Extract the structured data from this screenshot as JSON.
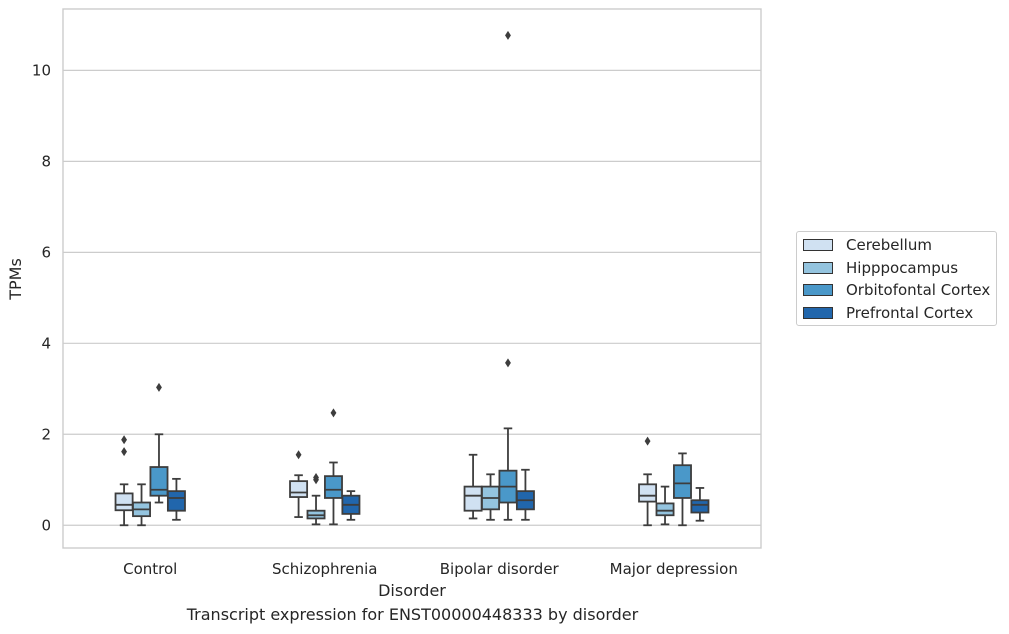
{
  "chart_data": {
    "type": "box",
    "ylabel": "TPMs",
    "xlabel": "Disorder",
    "caption": "Transcript expression for ENST00000448333 by disorder",
    "ylim": [
      -0.5,
      11.35
    ],
    "yticks": [
      0,
      2,
      4,
      6,
      8,
      10
    ],
    "grid": "horizontal",
    "legend_position": "right",
    "categories": [
      "Control",
      "Schizophrenia",
      "Bipolar disorder",
      "Major depression"
    ],
    "series": [
      {
        "name": "Cerebellum",
        "color": "#d0e1f2",
        "boxes": [
          {
            "whislo": 0.0,
            "q1": 0.33,
            "median": 0.45,
            "q3": 0.7,
            "whishi": 0.9,
            "fliers": [
              1.62,
              1.88
            ]
          },
          {
            "whislo": 0.18,
            "q1": 0.62,
            "median": 0.72,
            "q3": 0.97,
            "whishi": 1.1,
            "fliers": [
              1.55
            ]
          },
          {
            "whislo": 0.15,
            "q1": 0.32,
            "median": 0.65,
            "q3": 0.85,
            "whishi": 1.55,
            "fliers": []
          },
          {
            "whislo": 0.0,
            "q1": 0.52,
            "median": 0.65,
            "q3": 0.9,
            "whishi": 1.12,
            "fliers": [
              1.85
            ]
          }
        ]
      },
      {
        "name": "Hipppocampus",
        "color": "#94c4df",
        "boxes": [
          {
            "whislo": 0.0,
            "q1": 0.2,
            "median": 0.35,
            "q3": 0.5,
            "whishi": 0.9,
            "fliers": []
          },
          {
            "whislo": 0.02,
            "q1": 0.15,
            "median": 0.22,
            "q3": 0.32,
            "whishi": 0.65,
            "fliers": [
              1.0,
              1.05
            ]
          },
          {
            "whislo": 0.12,
            "q1": 0.35,
            "median": 0.6,
            "q3": 0.85,
            "whishi": 1.12,
            "fliers": []
          },
          {
            "whislo": 0.02,
            "q1": 0.22,
            "median": 0.32,
            "q3": 0.48,
            "whishi": 0.85,
            "fliers": []
          }
        ]
      },
      {
        "name": "Orbitofontal Cortex",
        "color": "#4a98c9",
        "boxes": [
          {
            "whislo": 0.5,
            "q1": 0.65,
            "median": 0.78,
            "q3": 1.28,
            "whishi": 2.0,
            "fliers": [
              3.03
            ]
          },
          {
            "whislo": 0.02,
            "q1": 0.6,
            "median": 0.78,
            "q3": 1.08,
            "whishi": 1.38,
            "fliers": [
              2.47
            ]
          },
          {
            "whislo": 0.12,
            "q1": 0.5,
            "median": 0.85,
            "q3": 1.2,
            "whishi": 2.13,
            "fliers": [
              3.57,
              10.77
            ]
          },
          {
            "whislo": 0.0,
            "q1": 0.6,
            "median": 0.92,
            "q3": 1.32,
            "whishi": 1.58,
            "fliers": []
          }
        ]
      },
      {
        "name": "Prefrontal Cortex",
        "color": "#2166ac",
        "boxes": [
          {
            "whislo": 0.12,
            "q1": 0.32,
            "median": 0.6,
            "q3": 0.75,
            "whishi": 1.02,
            "fliers": []
          },
          {
            "whislo": 0.12,
            "q1": 0.25,
            "median": 0.45,
            "q3": 0.65,
            "whishi": 0.75,
            "fliers": []
          },
          {
            "whislo": 0.12,
            "q1": 0.35,
            "median": 0.55,
            "q3": 0.75,
            "whishi": 1.22,
            "fliers": []
          },
          {
            "whislo": 0.1,
            "q1": 0.28,
            "median": 0.45,
            "q3": 0.55,
            "whishi": 0.82,
            "fliers": []
          }
        ]
      }
    ]
  }
}
